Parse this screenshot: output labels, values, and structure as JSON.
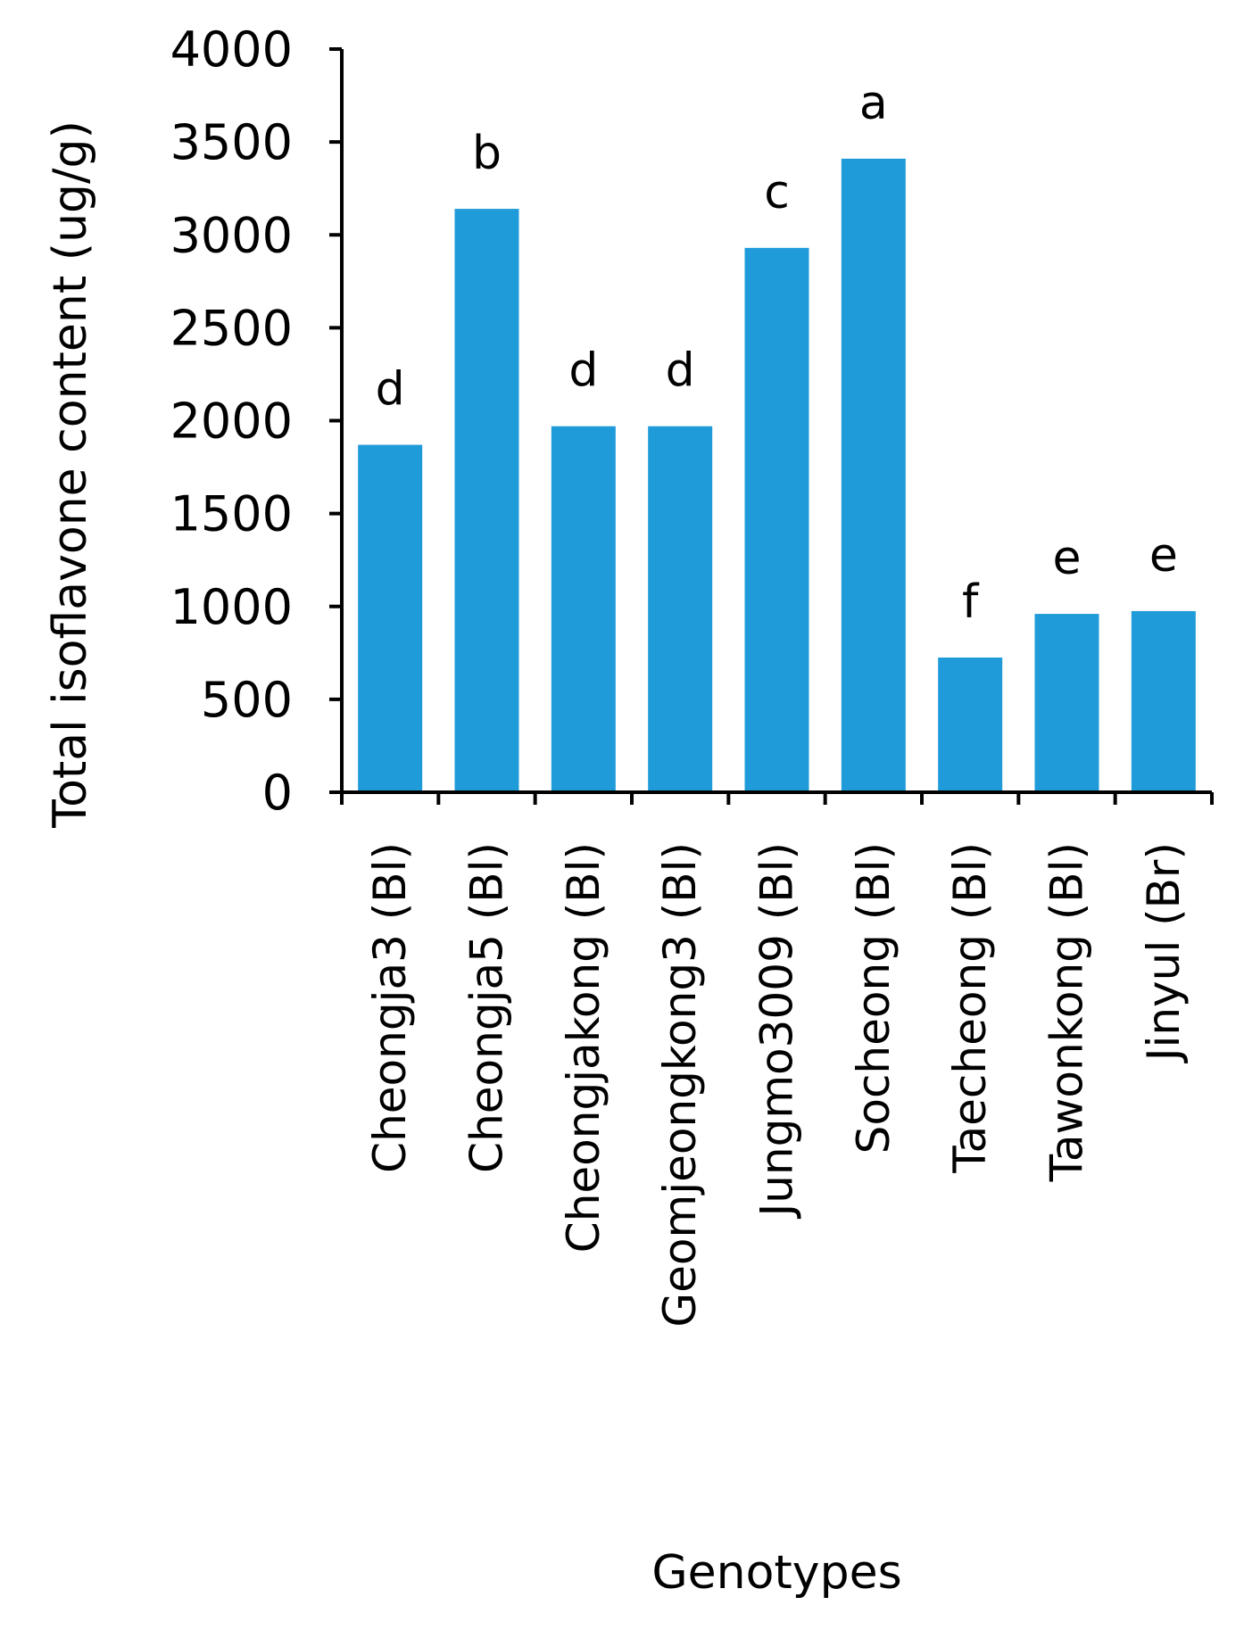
{
  "chart_data": {
    "type": "bar",
    "xlabel": "Genotypes",
    "ylabel": "Total isoflavone content (ug/g)",
    "ylim": [
      0,
      4000
    ],
    "yticks": [
      0,
      500,
      1000,
      1500,
      2000,
      2500,
      3000,
      3500,
      4000
    ],
    "categories": [
      "Cheongja3 (Bl)",
      "Cheongja5 (Bl)",
      "Cheongjakong (Bl)",
      "Geomjeongkong3 (Bl)",
      "Jungmo3009 (Bl)",
      "Socheong (Bl)",
      "Taecheong (Bl)",
      "Tawonkong (Bl)",
      "Jinyul (Br)"
    ],
    "values": [
      1870,
      3140,
      1970,
      1970,
      2930,
      3410,
      725,
      960,
      975
    ],
    "significance_letters": [
      "d",
      "b",
      "d",
      "d",
      "c",
      "a",
      "f",
      "e",
      "e"
    ],
    "bar_color": "#209BDA",
    "axis_color": "#000000",
    "grid": false,
    "legend": "none"
  }
}
